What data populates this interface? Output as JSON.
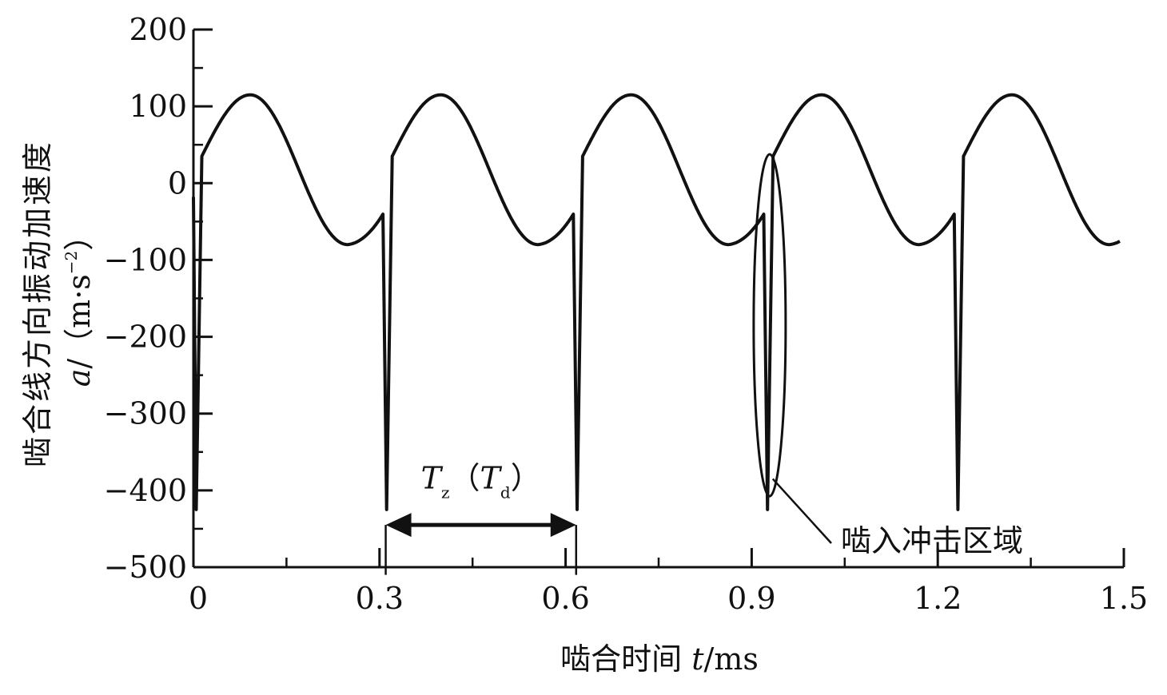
{
  "chart_data": {
    "type": "line",
    "title": "",
    "xlabel": "啮合时间 t/ms",
    "xlabel_parts": {
      "prefix": "啮合时间 ",
      "var": "t",
      "unit": "/ms"
    },
    "ylabel": "啮合线方向振动加速度 a/（m·s⁻²）",
    "ylabel_parts": {
      "line1": "啮合线方向振动加速度",
      "var": "a",
      "slash": "/",
      "unit_open": "（m·s",
      "unit_exp": "−2",
      "unit_close": "）"
    },
    "xlim": [
      0,
      1.5
    ],
    "ylim": [
      -500,
      200
    ],
    "x_ticks": [
      0,
      0.3,
      0.6,
      0.9,
      1.2,
      1.5
    ],
    "x_tick_labels": [
      "0",
      "0.3",
      "0.6",
      "0.9",
      "1.2",
      "1.5"
    ],
    "y_ticks": [
      200,
      100,
      0,
      -100,
      -200,
      -300,
      -400,
      -500
    ],
    "y_tick_labels": [
      "200",
      "100",
      "0",
      "−100",
      "−200",
      "−300",
      "−400",
      "−500"
    ],
    "grid": false,
    "legend": "none",
    "series": [
      {
        "color": "#111111",
        "period": 0.307,
        "impact_times": [
          0.0,
          0.307,
          0.614,
          0.921,
          1.228
        ],
        "impact_min": -425,
        "pre_impact_value": -18,
        "post_impact_value": 35,
        "wave_max": 115,
        "wave_min": -80,
        "wave_peak_offset": 0.078,
        "wave_trough_offset": 0.235
      }
    ],
    "annotations": {
      "period": {
        "T1": "T",
        "sub1": "z",
        "open": "（",
        "T2": "T",
        "sub2": "d",
        "close": "）",
        "from_x": 0.31,
        "to_x": 0.617,
        "y": -445
      },
      "impact_region": {
        "label": "啮入冲击区域",
        "center_x": 0.929,
        "center_y": -185,
        "arrow_to_x": 0.934,
        "arrow_to_y": -385,
        "label_x": 1.06,
        "label_y": -470
      }
    }
  }
}
